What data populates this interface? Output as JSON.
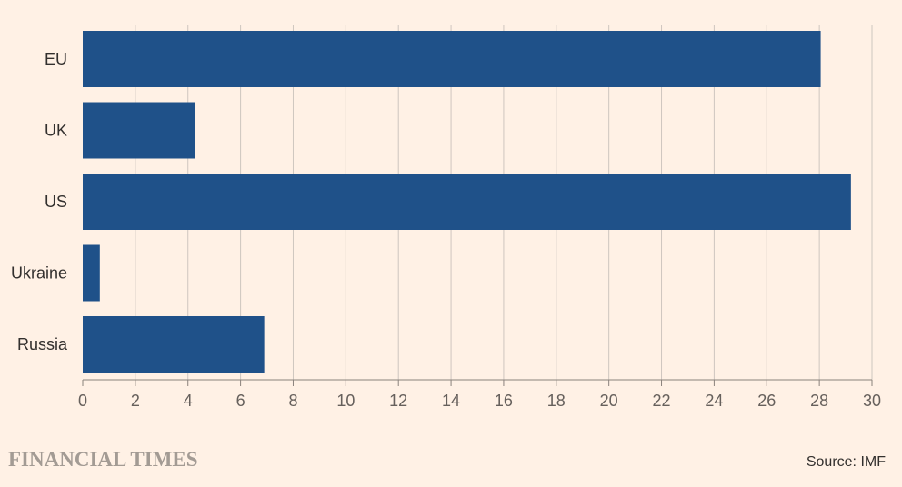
{
  "chart_data": {
    "type": "bar",
    "orientation": "horizontal",
    "categories": [
      "EU",
      "UK",
      "US",
      "Ukraine",
      "Russia"
    ],
    "values": [
      28.05,
      4.27,
      29.2,
      0.65,
      6.9
    ],
    "xlim": [
      0,
      30
    ],
    "xticks": [
      0,
      2,
      4,
      6,
      8,
      10,
      12,
      14,
      16,
      18,
      20,
      22,
      24,
      26,
      28,
      30
    ],
    "grid": "vertical",
    "bar_color": "#1f5189",
    "grid_color": "#cec6bf",
    "background": "#fff1e5"
  },
  "footer": {
    "brand": "FINANCIAL TIMES",
    "source": "Source: IMF"
  }
}
